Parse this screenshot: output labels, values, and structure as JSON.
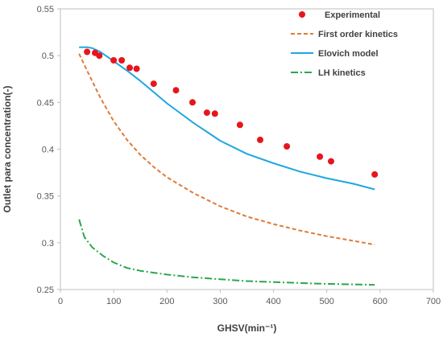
{
  "chart_data": {
    "type": "scatter",
    "xlabel": "GHSV(min⁻¹)",
    "ylabel": "Outlet para concentration(-)",
    "xlim": [
      0,
      700
    ],
    "ylim": [
      0.25,
      0.55
    ],
    "x_ticks": [
      "0",
      "100",
      "200",
      "300",
      "400",
      "500",
      "600",
      "700"
    ],
    "y_ticks": [
      "0.25",
      "0.3",
      "0.35",
      "0.4",
      "0.45",
      "0.5",
      "0.55"
    ],
    "grid": false,
    "legend_position": "top-right",
    "series": [
      {
        "name": "Experimental",
        "kind": "scatter",
        "color": "#e8141b",
        "x": [
          50,
          65,
          73,
          100,
          115,
          130,
          143,
          175,
          217,
          248,
          275,
          290,
          337,
          375,
          425,
          487,
          508,
          590
        ],
        "y": [
          0.504,
          0.503,
          0.5,
          0.495,
          0.495,
          0.487,
          0.486,
          0.47,
          0.463,
          0.45,
          0.439,
          0.438,
          0.426,
          0.41,
          0.403,
          0.392,
          0.387,
          0.373
        ]
      },
      {
        "name": "First order kinetics",
        "kind": "line",
        "dash": "dashed",
        "color": "#e07b39",
        "x": [
          35,
          50,
          75,
          100,
          125,
          150,
          175,
          200,
          250,
          300,
          350,
          400,
          450,
          500,
          550,
          590
        ],
        "y": [
          0.502,
          0.484,
          0.455,
          0.43,
          0.41,
          0.394,
          0.381,
          0.37,
          0.353,
          0.339,
          0.328,
          0.32,
          0.313,
          0.307,
          0.302,
          0.298
        ]
      },
      {
        "name": "Elovich model",
        "kind": "line",
        "dash": "solid",
        "color": "#1ea7e1",
        "x": [
          35,
          50,
          60,
          75,
          100,
          125,
          150,
          175,
          200,
          250,
          300,
          350,
          400,
          450,
          500,
          550,
          590
        ],
        "y": [
          0.509,
          0.509,
          0.508,
          0.504,
          0.494,
          0.484,
          0.473,
          0.461,
          0.449,
          0.428,
          0.409,
          0.395,
          0.385,
          0.376,
          0.369,
          0.363,
          0.357
        ]
      },
      {
        "name": "LH kinetics",
        "kind": "line",
        "dash": "dash-dot",
        "color": "#2aa84a",
        "x": [
          35,
          45,
          60,
          80,
          100,
          125,
          150,
          200,
          250,
          300,
          350,
          400,
          450,
          500,
          550,
          590
        ],
        "y": [
          0.325,
          0.306,
          0.295,
          0.286,
          0.279,
          0.273,
          0.27,
          0.266,
          0.263,
          0.261,
          0.259,
          0.258,
          0.257,
          0.256,
          0.2555,
          0.255
        ]
      }
    ]
  }
}
